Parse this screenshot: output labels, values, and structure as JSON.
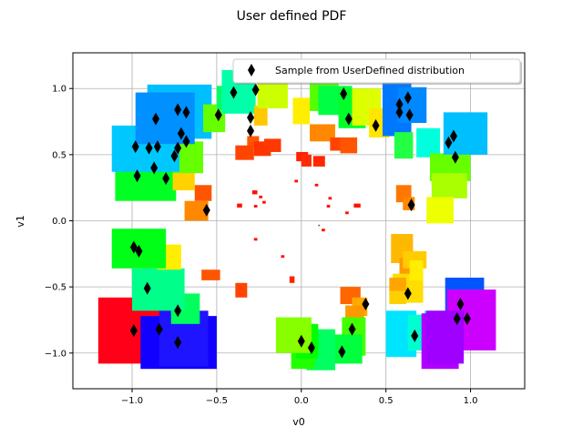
{
  "chart_data": {
    "type": "scatter",
    "title": "User defined PDF",
    "xlabel": "v0",
    "ylabel": "v1",
    "xlim": [
      -1.35,
      1.32
    ],
    "ylim": [
      -1.27,
      1.27
    ],
    "xticks": [
      -1.0,
      -0.5,
      0.0,
      0.5,
      1.0
    ],
    "yticks": [
      -1.0,
      -0.5,
      0.0,
      0.5,
      1.0
    ],
    "xtick_labels": [
      "−1.0",
      "−0.5",
      "0.0",
      "0.5",
      "1.0"
    ],
    "ytick_labels": [
      "−1.0",
      "−0.5",
      "0.0",
      "0.5",
      "1.0"
    ],
    "grid": true,
    "legend": {
      "label": "Sample from UserDefined distribution",
      "placement": "top-right"
    },
    "marker_color": "#000000",
    "rectangles": [
      {
        "x0": -1.2,
        "x1": -0.7,
        "y0": -1.08,
        "y1": -0.58,
        "color": "#ff0018"
      },
      {
        "x0": -0.95,
        "x1": -0.5,
        "y0": -1.12,
        "y1": -0.72,
        "color": "#1100ff"
      },
      {
        "x0": -0.84,
        "x1": -0.55,
        "y0": -1.1,
        "y1": -0.68,
        "color": "#1e14ff"
      },
      {
        "x0": -0.77,
        "x1": -0.6,
        "y0": -0.78,
        "y1": -0.55,
        "color": "#00ff5c"
      },
      {
        "x0": -1.0,
        "x1": -0.69,
        "y0": -0.68,
        "y1": -0.36,
        "color": "#00ff8a"
      },
      {
        "x0": -0.85,
        "x1": -0.71,
        "y0": -0.37,
        "y1": -0.18,
        "color": "#ffee00"
      },
      {
        "x0": -1.12,
        "x1": -0.8,
        "y0": -0.36,
        "y1": -0.06,
        "color": "#00ff16"
      },
      {
        "x0": -0.69,
        "x1": -0.55,
        "y0": 0.0,
        "y1": 0.15,
        "color": "#ff8800"
      },
      {
        "x0": -0.63,
        "x1": -0.53,
        "y0": 0.15,
        "y1": 0.27,
        "color": "#ff5500"
      },
      {
        "x0": -1.1,
        "x1": -0.74,
        "y0": 0.15,
        "y1": 0.46,
        "color": "#00ff22"
      },
      {
        "x0": -0.76,
        "x1": -0.63,
        "y0": 0.23,
        "y1": 0.5,
        "color": "#ffd200"
      },
      {
        "x0": -0.76,
        "x1": -0.58,
        "y0": 0.36,
        "y1": 0.6,
        "color": "#66ff00"
      },
      {
        "x0": -1.12,
        "x1": -0.72,
        "y0": 0.37,
        "y1": 0.72,
        "color": "#00c8ff"
      },
      {
        "x0": -0.9,
        "x1": -0.67,
        "y0": 0.58,
        "y1": 0.83,
        "color": "#00ff9a"
      },
      {
        "x0": -0.91,
        "x1": -0.53,
        "y0": 0.62,
        "y1": 1.03,
        "color": "#00bfff"
      },
      {
        "x0": -0.98,
        "x1": -0.63,
        "y0": 0.58,
        "y1": 0.97,
        "color": "#0090ff"
      },
      {
        "x0": -0.58,
        "x1": -0.45,
        "y0": 0.67,
        "y1": 0.88,
        "color": "#66ff00"
      },
      {
        "x0": -0.5,
        "x1": -0.35,
        "y0": 0.84,
        "y1": 1.02,
        "color": "#00ff66"
      },
      {
        "x0": -0.47,
        "x1": -0.27,
        "y0": 0.81,
        "y1": 1.14,
        "color": "#00ffa8"
      },
      {
        "x0": -0.28,
        "x1": -0.2,
        "y0": 0.72,
        "y1": 0.87,
        "color": "#ffc800"
      },
      {
        "x0": -0.32,
        "x1": -0.25,
        "y0": 0.56,
        "y1": 0.64,
        "color": "#ff5500"
      },
      {
        "x0": -0.26,
        "x1": -0.08,
        "y0": 0.85,
        "y1": 1.04,
        "color": "#ccff00"
      },
      {
        "x0": -0.05,
        "x1": 0.05,
        "y0": 0.73,
        "y1": 0.93,
        "color": "#ffee00"
      },
      {
        "x0": 0.05,
        "x1": 0.22,
        "y0": 0.83,
        "y1": 1.04,
        "color": "#55ff00"
      },
      {
        "x0": 0.1,
        "x1": 0.3,
        "y0": 0.8,
        "y1": 1.02,
        "color": "#00ff44"
      },
      {
        "x0": 0.22,
        "x1": 0.38,
        "y0": 0.7,
        "y1": 1.0,
        "color": "#00ff2a"
      },
      {
        "x0": 0.3,
        "x1": 0.47,
        "y0": 0.72,
        "y1": 1.0,
        "color": "#ddff00"
      },
      {
        "x0": 0.4,
        "x1": 0.52,
        "y0": 0.63,
        "y1": 0.85,
        "color": "#ffe600"
      },
      {
        "x0": 0.48,
        "x1": 0.65,
        "y0": 0.64,
        "y1": 1.04,
        "color": "#0077ff"
      },
      {
        "x0": 0.57,
        "x1": 0.74,
        "y0": 0.74,
        "y1": 1.01,
        "color": "#0088ff"
      },
      {
        "x0": 0.55,
        "x1": 0.66,
        "y0": 0.47,
        "y1": 0.67,
        "color": "#22ff44"
      },
      {
        "x0": 0.68,
        "x1": 0.82,
        "y0": 0.48,
        "y1": 0.7,
        "color": "#00ffdd"
      },
      {
        "x0": 0.76,
        "x1": 1.0,
        "y0": 0.3,
        "y1": 0.51,
        "color": "#66ff00"
      },
      {
        "x0": 0.84,
        "x1": 1.1,
        "y0": 0.5,
        "y1": 0.82,
        "color": "#00bfff"
      },
      {
        "x0": 0.77,
        "x1": 0.98,
        "y0": 0.17,
        "y1": 0.36,
        "color": "#aaff00"
      },
      {
        "x0": 0.74,
        "x1": 0.9,
        "y0": -0.02,
        "y1": 0.18,
        "color": "#eeff00"
      },
      {
        "x0": 0.56,
        "x1": 0.65,
        "y0": 0.14,
        "y1": 0.27,
        "color": "#ff7700"
      },
      {
        "x0": 0.6,
        "x1": 0.67,
        "y0": 0.08,
        "y1": 0.18,
        "color": "#ff8800"
      },
      {
        "x0": 0.53,
        "x1": 0.66,
        "y0": -0.32,
        "y1": -0.1,
        "color": "#ffb800"
      },
      {
        "x0": 0.58,
        "x1": 0.7,
        "y0": -0.48,
        "y1": -0.28,
        "color": "#ff9900"
      },
      {
        "x0": 0.6,
        "x1": 0.74,
        "y0": -0.36,
        "y1": -0.23,
        "color": "#ffcc00"
      },
      {
        "x0": 0.54,
        "x1": 0.72,
        "y0": -0.62,
        "y1": -0.4,
        "color": "#ffdd00"
      },
      {
        "x0": 0.64,
        "x1": 0.72,
        "y0": -0.45,
        "y1": -0.3,
        "color": "#ffee00"
      },
      {
        "x0": 0.52,
        "x1": 0.62,
        "y0": -0.55,
        "y1": -0.43,
        "color": "#ffa500"
      },
      {
        "x0": 0.52,
        "x1": 0.62,
        "y0": -0.63,
        "y1": -0.53,
        "color": "#ffd000"
      },
      {
        "x0": 0.23,
        "x1": 0.35,
        "y0": -0.63,
        "y1": -0.5,
        "color": "#ff6600"
      },
      {
        "x0": 0.3,
        "x1": 0.39,
        "y0": -0.72,
        "y1": -0.58,
        "color": "#ffaa00"
      },
      {
        "x0": 0.26,
        "x1": 0.37,
        "y0": -0.78,
        "y1": -0.64,
        "color": "#ff9900"
      },
      {
        "x0": 0.5,
        "x1": 0.68,
        "y0": -1.03,
        "y1": -0.68,
        "color": "#00e5ff"
      },
      {
        "x0": 0.63,
        "x1": 0.76,
        "y0": -0.98,
        "y1": -0.71,
        "color": "#00ffd0"
      },
      {
        "x0": 0.73,
        "x1": 0.93,
        "y0": -0.95,
        "y1": -0.68,
        "color": "#00c0ff"
      },
      {
        "x0": 0.85,
        "x1": 1.08,
        "y0": -0.85,
        "y1": -0.43,
        "color": "#0055ff"
      },
      {
        "x0": 0.71,
        "x1": 0.93,
        "y0": -1.12,
        "y1": -0.7,
        "color": "#b000ff"
      },
      {
        "x0": 0.86,
        "x1": 1.15,
        "y0": -0.98,
        "y1": -0.52,
        "color": "#cc00ff"
      },
      {
        "x0": 0.74,
        "x1": 0.96,
        "y0": -1.08,
        "y1": -0.68,
        "color": "#a000ff"
      },
      {
        "x0": 0.24,
        "x1": 0.38,
        "y0": -1.02,
        "y1": -0.73,
        "color": "#44ff00"
      },
      {
        "x0": 0.19,
        "x1": 0.36,
        "y0": -1.08,
        "y1": -0.86,
        "color": "#00ff3c"
      },
      {
        "x0": 0.03,
        "x1": 0.2,
        "y0": -1.13,
        "y1": -0.82,
        "color": "#00ff60"
      },
      {
        "x0": -0.06,
        "x1": 0.08,
        "y0": -1.12,
        "y1": -0.85,
        "color": "#22ff00"
      },
      {
        "x0": -0.03,
        "x1": 0.1,
        "y0": -1.04,
        "y1": -0.78,
        "color": "#00ff00"
      },
      {
        "x0": -0.15,
        "x1": 0.06,
        "y0": -1.0,
        "y1": -0.73,
        "color": "#88ff00"
      },
      {
        "x0": 0.05,
        "x1": 0.2,
        "y0": 0.6,
        "y1": 0.73,
        "color": "#ff8800"
      },
      {
        "x0": 0.17,
        "x1": 0.26,
        "y0": 0.53,
        "y1": 0.63,
        "color": "#ff4400"
      },
      {
        "x0": 0.23,
        "x1": 0.33,
        "y0": 0.51,
        "y1": 0.63,
        "color": "#ff5500"
      },
      {
        "x0": -0.28,
        "x1": -0.18,
        "y0": 0.49,
        "y1": 0.6,
        "color": "#ff3300"
      },
      {
        "x0": -0.39,
        "x1": -0.28,
        "y0": 0.46,
        "y1": 0.57,
        "color": "#ff4400"
      },
      {
        "x0": -0.22,
        "x1": -0.12,
        "y0": 0.52,
        "y1": 0.62,
        "color": "#ff3800"
      },
      {
        "x0": -0.03,
        "x1": 0.04,
        "y0": 0.45,
        "y1": 0.52,
        "color": "#ff2200"
      },
      {
        "x0": 0.0,
        "x1": 0.06,
        "y0": 0.41,
        "y1": 0.5,
        "color": "#ff2b00"
      },
      {
        "x0": 0.07,
        "x1": 0.14,
        "y0": 0.41,
        "y1": 0.49,
        "color": "#ff2600"
      },
      {
        "x0": -0.59,
        "x1": -0.48,
        "y0": -0.45,
        "y1": -0.37,
        "color": "#ff5500"
      },
      {
        "x0": -0.39,
        "x1": -0.32,
        "y0": -0.58,
        "y1": -0.47,
        "color": "#ff4400"
      },
      {
        "x0": -0.07,
        "x1": -0.04,
        "y0": -0.47,
        "y1": -0.42,
        "color": "#ff2200"
      },
      {
        "x0": -0.29,
        "x1": -0.26,
        "y0": 0.2,
        "y1": 0.23,
        "color": "#ff1100"
      },
      {
        "x0": -0.25,
        "x1": -0.23,
        "y0": 0.17,
        "y1": 0.19,
        "color": "#ff1100"
      },
      {
        "x0": -0.23,
        "x1": -0.21,
        "y0": 0.13,
        "y1": 0.15,
        "color": "#ff1100"
      },
      {
        "x0": -0.38,
        "x1": -0.35,
        "y0": 0.1,
        "y1": 0.13,
        "color": "#ff1200"
      },
      {
        "x0": -0.28,
        "x1": -0.26,
        "y0": 0.1,
        "y1": 0.12,
        "color": "#ff1000"
      },
      {
        "x0": -0.04,
        "x1": -0.02,
        "y0": 0.29,
        "y1": 0.31,
        "color": "#ff1000"
      },
      {
        "x0": 0.08,
        "x1": 0.1,
        "y0": 0.26,
        "y1": 0.28,
        "color": "#ff1000"
      },
      {
        "x0": 0.16,
        "x1": 0.18,
        "y0": 0.16,
        "y1": 0.18,
        "color": "#ff1000"
      },
      {
        "x0": 0.15,
        "x1": 0.17,
        "y0": 0.1,
        "y1": 0.12,
        "color": "#ff1000"
      },
      {
        "x0": 0.26,
        "x1": 0.28,
        "y0": 0.05,
        "y1": 0.07,
        "color": "#ff1000"
      },
      {
        "x0": 0.31,
        "x1": 0.35,
        "y0": 0.1,
        "y1": 0.13,
        "color": "#ff1400"
      },
      {
        "x0": 0.12,
        "x1": 0.14,
        "y0": -0.08,
        "y1": -0.06,
        "color": "#ff1000"
      },
      {
        "x0": -0.28,
        "x1": -0.26,
        "y0": -0.15,
        "y1": -0.13,
        "color": "#ff1000"
      },
      {
        "x0": -0.12,
        "x1": -0.1,
        "y0": -0.28,
        "y1": -0.26,
        "color": "#ff1000"
      },
      {
        "x0": 0.1,
        "x1": 0.11,
        "y0": -0.04,
        "y1": -0.03,
        "color": "#555555"
      }
    ],
    "points": [
      [
        -0.98,
        0.56
      ],
      [
        -0.9,
        0.55
      ],
      [
        -0.85,
        0.56
      ],
      [
        -0.86,
        0.77
      ],
      [
        -0.73,
        0.84
      ],
      [
        -0.68,
        0.82
      ],
      [
        -0.71,
        0.66
      ],
      [
        -0.68,
        0.6
      ],
      [
        -0.73,
        0.55
      ],
      [
        -0.75,
        0.49
      ],
      [
        -0.97,
        0.34
      ],
      [
        -0.87,
        0.4
      ],
      [
        -0.8,
        0.32
      ],
      [
        -0.56,
        0.08
      ],
      [
        -0.4,
        0.97
      ],
      [
        -0.27,
        0.99
      ],
      [
        -0.49,
        0.8
      ],
      [
        -0.3,
        0.78
      ],
      [
        -0.3,
        0.68
      ],
      [
        0.25,
        0.96
      ],
      [
        0.28,
        0.77
      ],
      [
        0.44,
        0.72
      ],
      [
        0.58,
        0.88
      ],
      [
        0.63,
        0.93
      ],
      [
        0.58,
        0.82
      ],
      [
        0.64,
        0.8
      ],
      [
        0.87,
        0.59
      ],
      [
        0.9,
        0.64
      ],
      [
        0.91,
        0.48
      ],
      [
        0.65,
        0.12
      ],
      [
        -0.99,
        -0.2
      ],
      [
        -0.96,
        -0.23
      ],
      [
        -0.91,
        -0.51
      ],
      [
        -0.73,
        -0.68
      ],
      [
        -0.73,
        -0.92
      ],
      [
        -0.84,
        -0.82
      ],
      [
        -0.99,
        -0.83
      ],
      [
        0.63,
        -0.55
      ],
      [
        0.67,
        -0.87
      ],
      [
        0.38,
        -0.63
      ],
      [
        0.94,
        -0.63
      ],
      [
        0.92,
        -0.74
      ],
      [
        0.98,
        -0.74
      ],
      [
        0.3,
        -0.82
      ],
      [
        0.24,
        -0.99
      ],
      [
        0.0,
        -0.91
      ],
      [
        0.06,
        -0.96
      ]
    ]
  }
}
